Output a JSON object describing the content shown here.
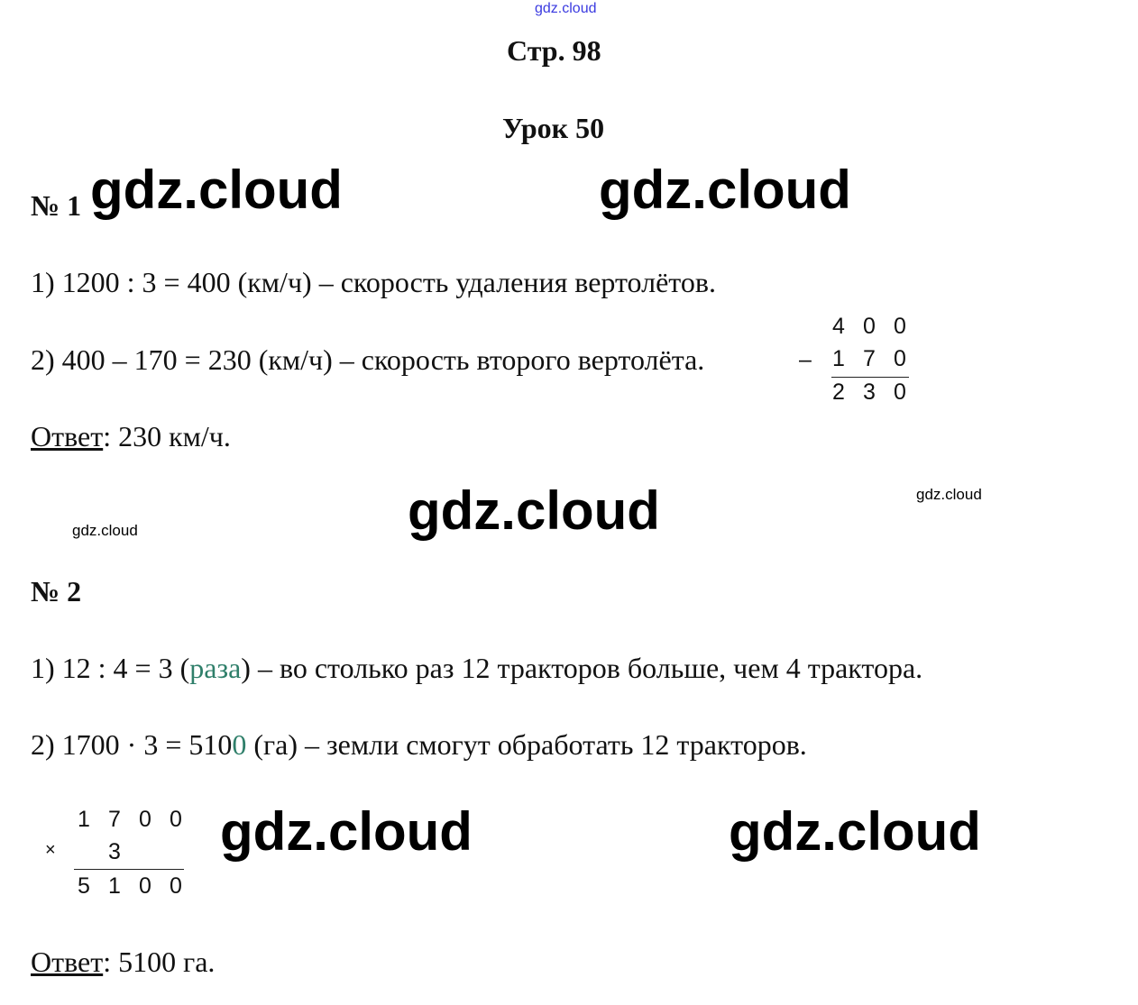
{
  "watermark": "gdz.cloud",
  "page_title": "Стр. 98",
  "lesson_title": "Урок 50",
  "task1": {
    "number": "№ 1",
    "step1": "1) 1200 : 3 = 400 (км/ч) – скорость удаления вертолётов.",
    "step2": "2) 400 – 170 = 230 (км/ч) – скорость второго вертолёта.",
    "column": {
      "operator": "–",
      "top": [
        "4",
        "0",
        "0"
      ],
      "middle": [
        "1",
        "7",
        "0"
      ],
      "result": [
        "2",
        "3",
        "0"
      ]
    },
    "answer_label": "Ответ",
    "answer_text": ": 230 км/ч."
  },
  "task2": {
    "number": "№ 2",
    "step1_a": "1) 12 : 4 = 3 (",
    "step1_b": "раза",
    "step1_c": ") – во столько раз 12 тракторов больше, чем 4 трактора.",
    "step2_a": "2) 1700 · 3 = 510",
    "step2_b": "0",
    "step2_c": " (га) – земли смогут обработать 12 тракторов.",
    "column": {
      "operator": "×",
      "top": [
        "1",
        "7",
        "0",
        "0"
      ],
      "middle": [
        "3"
      ],
      "result": [
        "5",
        "1",
        "0",
        "0"
      ]
    },
    "answer_label": "Ответ",
    "answer_text": ": 5100 га."
  }
}
